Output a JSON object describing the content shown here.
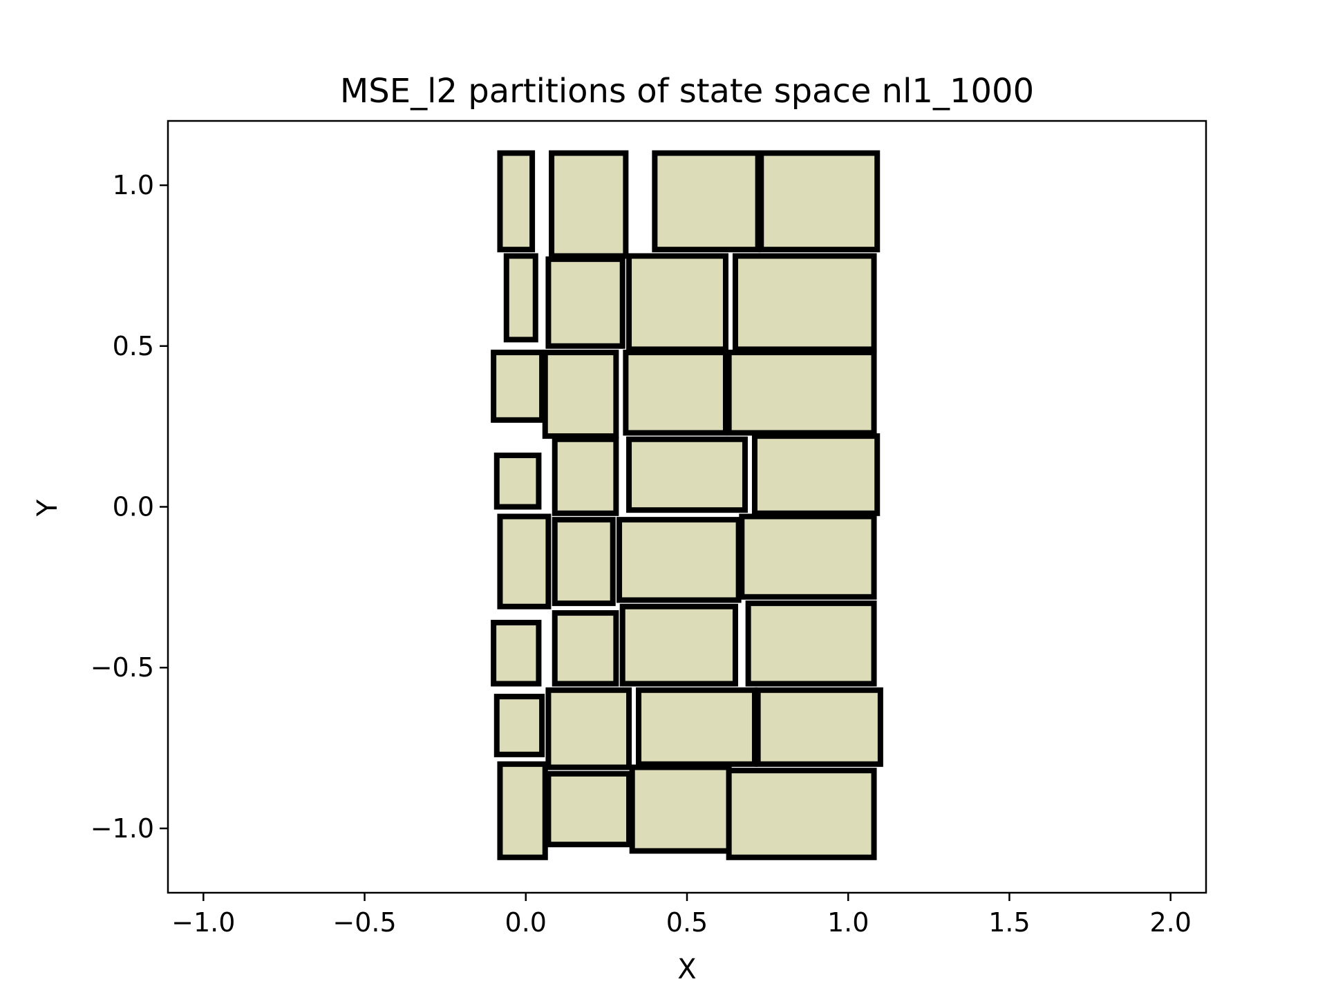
{
  "chart_data": {
    "type": "rectangles",
    "title": "MSE_l2 partitions of state space nl1_1000",
    "xlabel": "X",
    "ylabel": "Y",
    "xlim": [
      -1.11,
      2.11
    ],
    "ylim": [
      -1.2,
      1.2
    ],
    "xticks": [
      -1.0,
      -0.5,
      0.0,
      0.5,
      1.0,
      1.5,
      2.0
    ],
    "xtick_labels": [
      "−1.0",
      "−0.5",
      "0.0",
      "0.5",
      "1.0",
      "1.5",
      "2.0"
    ],
    "yticks": [
      -1.0,
      -0.5,
      0.0,
      0.5,
      1.0
    ],
    "ytick_labels": [
      "−1.0",
      "−0.5",
      "0.0",
      "0.5",
      "1.0"
    ],
    "grid": false,
    "fill_color": "#dcdcb9",
    "edge_color": "#000000",
    "rectangles": [
      {
        "x0": -0.08,
        "x1": 0.02,
        "y0": 0.8,
        "y1": 1.1
      },
      {
        "x0": 0.08,
        "x1": 0.31,
        "y0": 0.78,
        "y1": 1.1
      },
      {
        "x0": 0.4,
        "x1": 0.72,
        "y0": 0.8,
        "y1": 1.1
      },
      {
        "x0": 0.73,
        "x1": 1.09,
        "y0": 0.8,
        "y1": 1.1
      },
      {
        "x0": -0.06,
        "x1": 0.03,
        "y0": 0.52,
        "y1": 0.78
      },
      {
        "x0": 0.07,
        "x1": 0.3,
        "y0": 0.5,
        "y1": 0.77
      },
      {
        "x0": 0.32,
        "x1": 0.62,
        "y0": 0.49,
        "y1": 0.78
      },
      {
        "x0": 0.65,
        "x1": 1.08,
        "y0": 0.49,
        "y1": 0.78
      },
      {
        "x0": -0.1,
        "x1": 0.05,
        "y0": 0.27,
        "y1": 0.48
      },
      {
        "x0": 0.06,
        "x1": 0.28,
        "y0": 0.22,
        "y1": 0.48
      },
      {
        "x0": 0.31,
        "x1": 0.62,
        "y0": 0.23,
        "y1": 0.48
      },
      {
        "x0": 0.63,
        "x1": 1.08,
        "y0": 0.23,
        "y1": 0.48
      },
      {
        "x0": -0.09,
        "x1": 0.04,
        "y0": 0.0,
        "y1": 0.16
      },
      {
        "x0": 0.09,
        "x1": 0.28,
        "y0": -0.02,
        "y1": 0.21
      },
      {
        "x0": 0.32,
        "x1": 0.68,
        "y0": -0.01,
        "y1": 0.21
      },
      {
        "x0": 0.71,
        "x1": 1.09,
        "y0": -0.02,
        "y1": 0.22
      },
      {
        "x0": -0.08,
        "x1": 0.07,
        "y0": -0.31,
        "y1": -0.03
      },
      {
        "x0": 0.09,
        "x1": 0.27,
        "y0": -0.3,
        "y1": -0.04
      },
      {
        "x0": 0.29,
        "x1": 0.66,
        "y0": -0.29,
        "y1": -0.04
      },
      {
        "x0": 0.67,
        "x1": 1.08,
        "y0": -0.28,
        "y1": -0.03
      },
      {
        "x0": -0.1,
        "x1": 0.04,
        "y0": -0.55,
        "y1": -0.36
      },
      {
        "x0": 0.09,
        "x1": 0.28,
        "y0": -0.55,
        "y1": -0.33
      },
      {
        "x0": 0.3,
        "x1": 0.65,
        "y0": -0.55,
        "y1": -0.31
      },
      {
        "x0": 0.69,
        "x1": 1.08,
        "y0": -0.55,
        "y1": -0.3
      },
      {
        "x0": -0.09,
        "x1": 0.05,
        "y0": -0.77,
        "y1": -0.59
      },
      {
        "x0": 0.07,
        "x1": 0.32,
        "y0": -0.81,
        "y1": -0.57
      },
      {
        "x0": 0.35,
        "x1": 0.71,
        "y0": -0.8,
        "y1": -0.57
      },
      {
        "x0": 0.72,
        "x1": 1.1,
        "y0": -0.8,
        "y1": -0.57
      },
      {
        "x0": -0.08,
        "x1": 0.06,
        "y0": -1.09,
        "y1": -0.8
      },
      {
        "x0": 0.07,
        "x1": 0.32,
        "y0": -1.05,
        "y1": -0.83
      },
      {
        "x0": 0.33,
        "x1": 0.63,
        "y0": -1.07,
        "y1": -0.81
      },
      {
        "x0": 0.63,
        "x1": 1.08,
        "y0": -1.09,
        "y1": -0.82
      }
    ]
  }
}
